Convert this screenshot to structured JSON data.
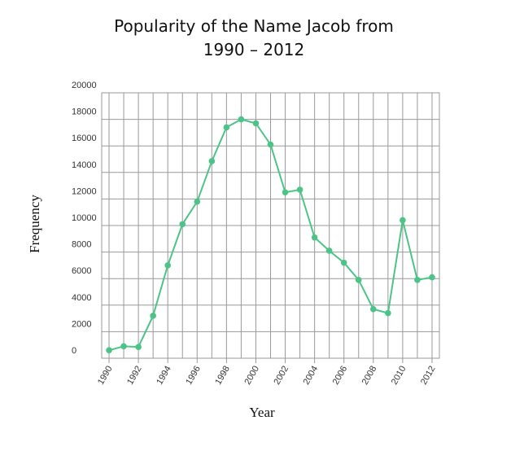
{
  "chart_data": {
    "type": "line",
    "title": [
      "Popularity of the Name Jacob from",
      "1990 – 2012"
    ],
    "x_label": "Year",
    "y_label": "Frequency",
    "x": [
      1990,
      1991,
      1992,
      1993,
      1994,
      1995,
      1996,
      1997,
      1998,
      1999,
      2000,
      2001,
      2002,
      2003,
      2004,
      2005,
      2006,
      2007,
      2008,
      2009,
      2010,
      2011,
      2012
    ],
    "series": [
      {
        "name": "Jacob",
        "color": "#4cc487",
        "values": [
          600,
          900,
          850,
          3200,
          7000,
          10100,
          11800,
          14850,
          17400,
          18000,
          17700,
          16100,
          12500,
          12700,
          9100,
          8100,
          7200,
          5900,
          3700,
          3400,
          10400,
          5900,
          6100
        ]
      }
    ],
    "xlim": [
      1989.5,
      2012.5
    ],
    "xticks": [
      1990,
      1992,
      1994,
      1996,
      1998,
      2000,
      2002,
      2004,
      2006,
      2008,
      2010,
      2012
    ],
    "x_minor_ticks": [
      1991,
      1993,
      1995,
      1997,
      1999,
      2001,
      2003,
      2005,
      2007,
      2009,
      2011
    ],
    "ylim": [
      0,
      20000
    ],
    "yticks": [
      0,
      2000,
      4000,
      6000,
      8000,
      10000,
      12000,
      14000,
      16000,
      18000,
      20000
    ],
    "grid": true
  }
}
